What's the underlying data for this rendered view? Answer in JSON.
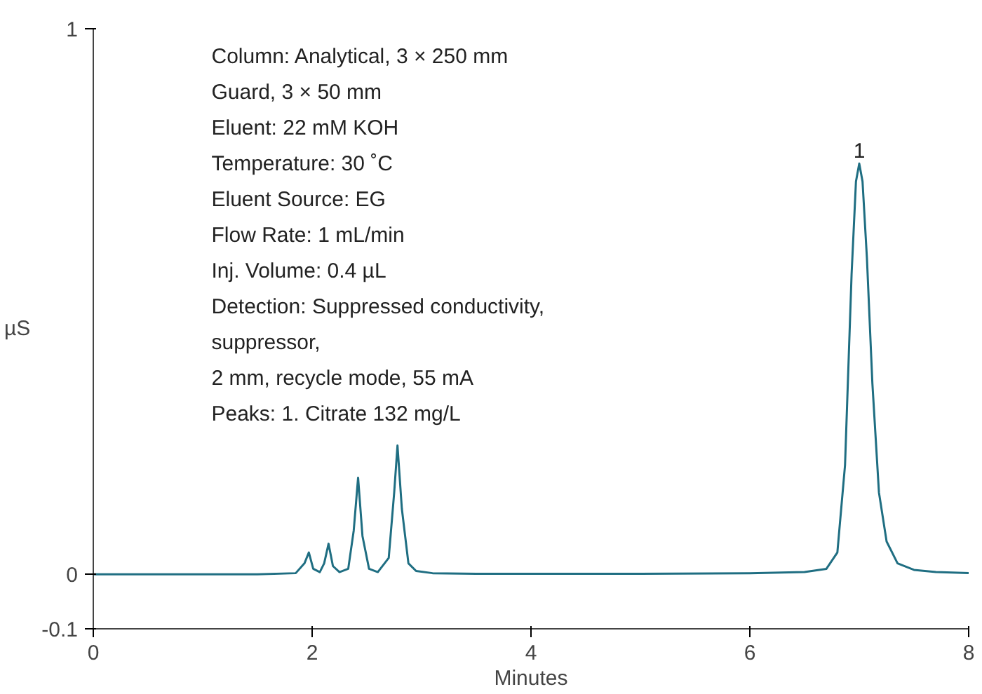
{
  "chart_data": {
    "type": "line",
    "xlabel": "Minutes",
    "ylabel": "µS",
    "x": [
      0,
      0.5,
      1,
      1.5,
      1.85,
      1.93,
      1.97,
      2.01,
      2.07,
      2.11,
      2.15,
      2.19,
      2.25,
      2.33,
      2.38,
      2.42,
      2.46,
      2.52,
      2.6,
      2.7,
      2.75,
      2.78,
      2.82,
      2.88,
      2.95,
      3.1,
      3.5,
      4,
      5,
      6,
      6.5,
      6.7,
      6.8,
      6.87,
      6.93,
      6.97,
      7.0,
      7.03,
      7.07,
      7.12,
      7.18,
      7.25,
      7.35,
      7.5,
      7.7,
      8
    ],
    "series": [
      {
        "color": "#1f6e82",
        "values": [
          0,
          0,
          0,
          0,
          0.002,
          0.02,
          0.04,
          0.01,
          0.004,
          0.02,
          0.056,
          0.015,
          0.004,
          0.01,
          0.08,
          0.177,
          0.07,
          0.01,
          0.004,
          0.03,
          0.15,
          0.236,
          0.12,
          0.02,
          0.006,
          0.002,
          0.001,
          0.001,
          0.001,
          0.002,
          0.004,
          0.01,
          0.04,
          0.2,
          0.55,
          0.72,
          0.753,
          0.72,
          0.58,
          0.35,
          0.15,
          0.06,
          0.02,
          0.008,
          0.004,
          0.002
        ]
      }
    ],
    "xlim": [
      0,
      8
    ],
    "xticks": [
      0,
      2,
      4,
      6,
      8
    ],
    "ylim": [
      -0.1,
      1
    ],
    "yticks": [
      -0.1,
      0,
      1
    ],
    "grid": false,
    "marker": "none",
    "line_style": "solid",
    "annotations": [
      "Column: Analytical, 3 × 250 mm",
      "Guard, 3 × 50 mm",
      "Eluent: 22 mM KOH",
      "Temperature: 30 ˚C",
      "Eluent Source: EG",
      "Flow Rate: 1 mL/min",
      "Inj. Volume: 0.4 µL",
      "Detection: Suppressed conductivity,",
      "suppressor,",
      "2 mm, recycle mode, 55 mA",
      "Peaks: 1. Citrate 132 mg/L",
      {
        "text": "1",
        "x": 7.0,
        "y": 0.753
      }
    ]
  }
}
